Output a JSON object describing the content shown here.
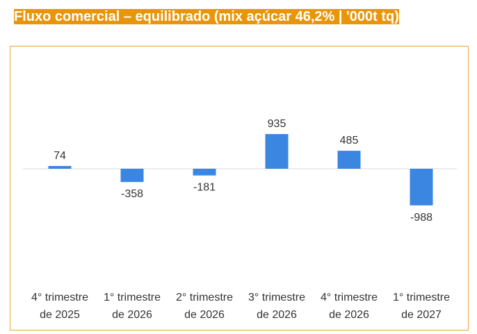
{
  "title": "Fluxo comercial – equilibrado (mix açúcar 46,2% | '000t tq)",
  "colors": {
    "bar": "#3a86e0",
    "title_bg": "#e8950c",
    "border": "#e8a43a",
    "text": "#333333",
    "zero_line": "#d9d9d9"
  },
  "chart_data": {
    "type": "bar",
    "title": "Fluxo comercial – equilibrado (mix açúcar 46,2% | '000t tq)",
    "categories": [
      [
        "4° trimestre",
        "de 2025"
      ],
      [
        "1° trimestre",
        "de 2026"
      ],
      [
        "2° trimestre",
        "de 2026"
      ],
      [
        "3° trimestre",
        "de 2026"
      ],
      [
        "4° trimestre",
        "de 2026"
      ],
      [
        "1° trimestre",
        "de 2027"
      ]
    ],
    "values": [
      74,
      -358,
      -181,
      935,
      485,
      -988
    ],
    "data_labels": [
      "74",
      "-358",
      "-181",
      "935",
      "485",
      "-988"
    ],
    "xlabel": "",
    "ylabel": "",
    "grid": false,
    "legend": "none"
  }
}
